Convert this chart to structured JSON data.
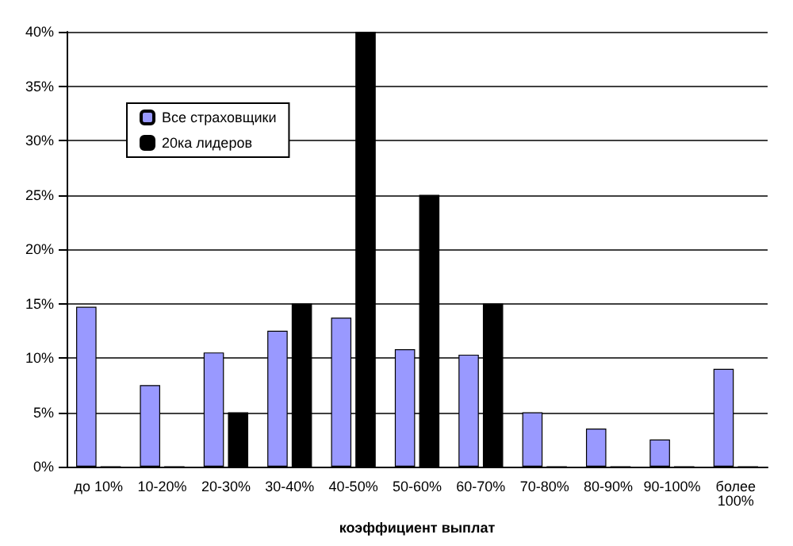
{
  "chart_data": {
    "type": "bar",
    "xlabel": "коэффициент выплат",
    "categories": [
      "до 10%",
      "10-20%",
      "20-30%",
      "30-40%",
      "40-50%",
      "50-60%",
      "60-70%",
      "70-80%",
      "80-90%",
      "90-100%",
      "более 100%"
    ],
    "series": [
      {
        "name": "Все страховщики",
        "color": "#9999ff",
        "values": [
          14.7,
          7.5,
          10.5,
          12.5,
          13.7,
          10.8,
          10.3,
          5,
          3.5,
          2.5,
          9
        ]
      },
      {
        "name": "20ка лидеров",
        "color": "#000000",
        "values": [
          0,
          0,
          5,
          15,
          40,
          25,
          15,
          0,
          0,
          0,
          0
        ]
      }
    ],
    "ylim": [
      0,
      40
    ],
    "yticks": [
      {
        "value": 0,
        "label": "0%"
      },
      {
        "value": 5,
        "label": "5%"
      },
      {
        "value": 10,
        "label": "10%"
      },
      {
        "value": 15,
        "label": "15%"
      },
      {
        "value": 20,
        "label": "20%"
      },
      {
        "value": 25,
        "label": "25%"
      },
      {
        "value": 30,
        "label": "30%"
      },
      {
        "value": 35,
        "label": "35%"
      },
      {
        "value": 40,
        "label": "40%"
      }
    ],
    "grid": "y",
    "legend": "top left"
  }
}
